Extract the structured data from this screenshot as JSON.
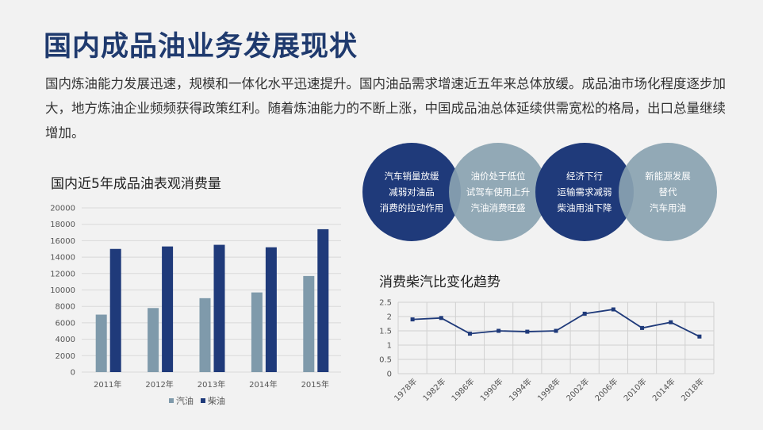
{
  "page": {
    "title": "国内成品油业务发展现状",
    "intro": "国内炼油能力发展迅速，规模和一体化水平迅速提升。国内油品需求增速近五年来总体放缓。成品油市场化程度逐步加大，地方炼油企业频频获得政策红利。随着炼油能力的不断上涨，中国成品油总体延续供需宽松的格局，出口总量继续增加。"
  },
  "circles": [
    {
      "lines": [
        "汽车销量放缓",
        "减弱对油品",
        "消费的拉动作用"
      ],
      "color": "#1f3a7a",
      "text_color": "#ffffff"
    },
    {
      "lines": [
        "油价处于低位",
        "试驾车使用上升",
        "汽油消费旺盛"
      ],
      "color": "#8aa3b1",
      "text_color": "#ffffff"
    },
    {
      "lines": [
        "经济下行",
        "运输需求减弱",
        "柴油用油下降"
      ],
      "color": "#1f3a7a",
      "text_color": "#ffffff"
    },
    {
      "lines": [
        "新能源发展",
        "替代",
        "汽车用油"
      ],
      "color": "#8aa3b1",
      "text_color": "#ffffff"
    }
  ],
  "chart_data": [
    {
      "type": "bar",
      "title": "国内近5年成品油表观消费量",
      "categories": [
        "2011年",
        "2012年",
        "2013年",
        "2014年",
        "2015年"
      ],
      "series": [
        {
          "name": "汽油",
          "values": [
            7000,
            7800,
            9000,
            9700,
            11700
          ],
          "color": "#7f9aab"
        },
        {
          "name": "柴油",
          "values": [
            15000,
            15300,
            15500,
            15200,
            17400
          ],
          "color": "#1f3a7a"
        }
      ],
      "ylim": [
        0,
        20000
      ],
      "yticks": [
        0,
        2000,
        4000,
        6000,
        8000,
        10000,
        12000,
        14000,
        16000,
        18000,
        20000
      ],
      "grid": true,
      "legend": "bottom"
    },
    {
      "type": "line",
      "title": "消费柴汽比变化趋势",
      "categories": [
        "1978年",
        "1982年",
        "1986年",
        "1990年",
        "1994年",
        "1998年",
        "2002年",
        "2006年",
        "2010年",
        "2014年",
        "2018年"
      ],
      "series": [
        {
          "values": [
            1.9,
            1.95,
            1.4,
            1.5,
            1.47,
            1.5,
            2.1,
            2.25,
            1.6,
            1.8,
            1.3
          ],
          "color": "#1f3a7a"
        }
      ],
      "ylim": [
        0,
        2.5
      ],
      "yticks": [
        0,
        0.5,
        1,
        1.5,
        2,
        2.5
      ],
      "grid": true
    }
  ]
}
